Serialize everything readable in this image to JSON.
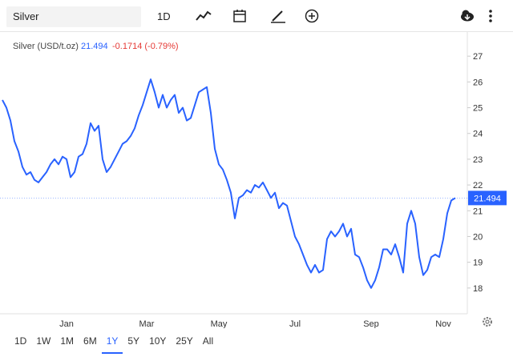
{
  "toolbar": {
    "search": "Silver",
    "interval": "1D"
  },
  "ranges": [
    "1D",
    "1W",
    "1M",
    "6M",
    "1Y",
    "5Y",
    "10Y",
    "25Y",
    "All"
  ],
  "active_range_index": 4,
  "chart_data": {
    "type": "line",
    "change_label": "-0.1714 (-0.79%)",
    "categories": [
      null,
      null,
      null,
      null,
      null,
      null,
      null,
      null,
      null,
      null,
      null,
      null,
      null,
      null,
      null,
      null,
      "Jan",
      null,
      null,
      null,
      null,
      null,
      null,
      null,
      null,
      null,
      null,
      null,
      null,
      null,
      null,
      null,
      null,
      null,
      null,
      null,
      "Mar",
      null,
      null,
      null,
      null,
      null,
      null,
      null,
      null,
      null,
      null,
      null,
      null,
      null,
      null,
      null,
      null,
      null,
      "May",
      null,
      null,
      null,
      null,
      null,
      null,
      null,
      null,
      null,
      null,
      null,
      null,
      null,
      null,
      null,
      null,
      null,
      null,
      "Jul",
      null,
      null,
      null,
      null,
      null,
      null,
      null,
      null,
      null,
      null,
      null,
      null,
      null,
      null,
      null,
      null,
      null,
      null,
      "Sep",
      null,
      null,
      null,
      null,
      null,
      null,
      null,
      null,
      null,
      null,
      null,
      null,
      null,
      null,
      null,
      null,
      null,
      "Nov",
      null,
      null,
      null
    ],
    "series": [
      {
        "name": "Silver (USD/t.oz)",
        "color": "#2962ff",
        "values": [
          25.3,
          25.0,
          24.5,
          23.7,
          23.3,
          22.7,
          22.4,
          22.5,
          22.2,
          22.1,
          22.3,
          22.5,
          22.8,
          23.0,
          22.8,
          23.1,
          23.0,
          22.3,
          22.5,
          23.1,
          23.2,
          23.6,
          24.4,
          24.1,
          24.3,
          23.0,
          22.5,
          22.7,
          23.0,
          23.3,
          23.6,
          23.7,
          23.9,
          24.2,
          24.7,
          25.1,
          25.6,
          26.1,
          25.6,
          25.0,
          25.5,
          25.0,
          25.3,
          25.5,
          24.8,
          25.0,
          24.5,
          24.6,
          25.1,
          25.6,
          25.7,
          25.8,
          24.8,
          23.4,
          22.8,
          22.6,
          22.2,
          21.7,
          20.7,
          21.5,
          21.6,
          21.8,
          21.7,
          22.0,
          21.9,
          22.1,
          21.8,
          21.5,
          21.7,
          21.1,
          21.3,
          21.2,
          20.6,
          20.0,
          19.7,
          19.3,
          18.9,
          18.6,
          18.9,
          18.6,
          18.7,
          19.9,
          20.2,
          20.0,
          20.2,
          20.5,
          20.0,
          20.3,
          19.3,
          19.2,
          18.8,
          18.3,
          18.0,
          18.3,
          18.8,
          19.5,
          19.5,
          19.3,
          19.7,
          19.2,
          18.6,
          20.5,
          21.0,
          20.5,
          19.2,
          18.5,
          18.7,
          19.2,
          19.3,
          19.2,
          19.9,
          20.9,
          21.4,
          21.494
        ]
      }
    ],
    "ylim": [
      17,
      28
    ],
    "yticks": [
      18,
      19,
      20,
      21,
      22,
      23,
      24,
      25,
      26,
      27
    ]
  }
}
